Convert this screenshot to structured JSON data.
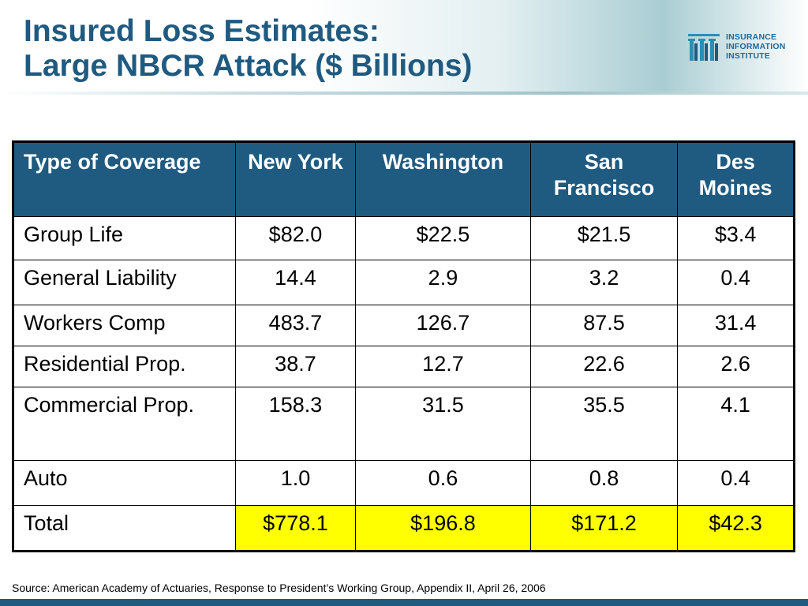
{
  "slide": {
    "title_line1": "Insured Loss Estimates:",
    "title_line2": "Large NBCR Attack ($ Billions)",
    "source": "Source: American Academy of Actuaries, Response to President’s Working Group, Appendix II, April 26, 2006"
  },
  "logo": {
    "line1": "INSURANCE",
    "line2": "INFORMATION",
    "line3": "INSTITUTE"
  },
  "table": {
    "headers": [
      "Type of Coverage",
      "New York",
      "Washington",
      "San Francisco",
      "Des Moines"
    ],
    "rows": [
      [
        "Group Life",
        "$82.0",
        "$22.5",
        "$21.5",
        "$3.4"
      ],
      [
        "General Liability",
        "14.4",
        "2.9",
        "3.2",
        "0.4"
      ],
      [
        "Workers Comp",
        "483.7",
        "126.7",
        "87.5",
        "31.4"
      ],
      [
        "Residential Prop.",
        "38.7",
        "12.7",
        "22.6",
        "2.6"
      ],
      [
        "Commercial Prop.",
        "158.3",
        "31.5",
        "35.5",
        "4.1"
      ],
      [
        "Auto",
        "1.0",
        "0.6",
        "0.8",
        "0.4"
      ],
      [
        "Total",
        "$778.1",
        "$196.8",
        "$171.2",
        "$42.3"
      ]
    ]
  },
  "colors": {
    "title": "#1f5a80",
    "header_bg": "#1f5a80",
    "total_highlight": "#ffff00"
  }
}
